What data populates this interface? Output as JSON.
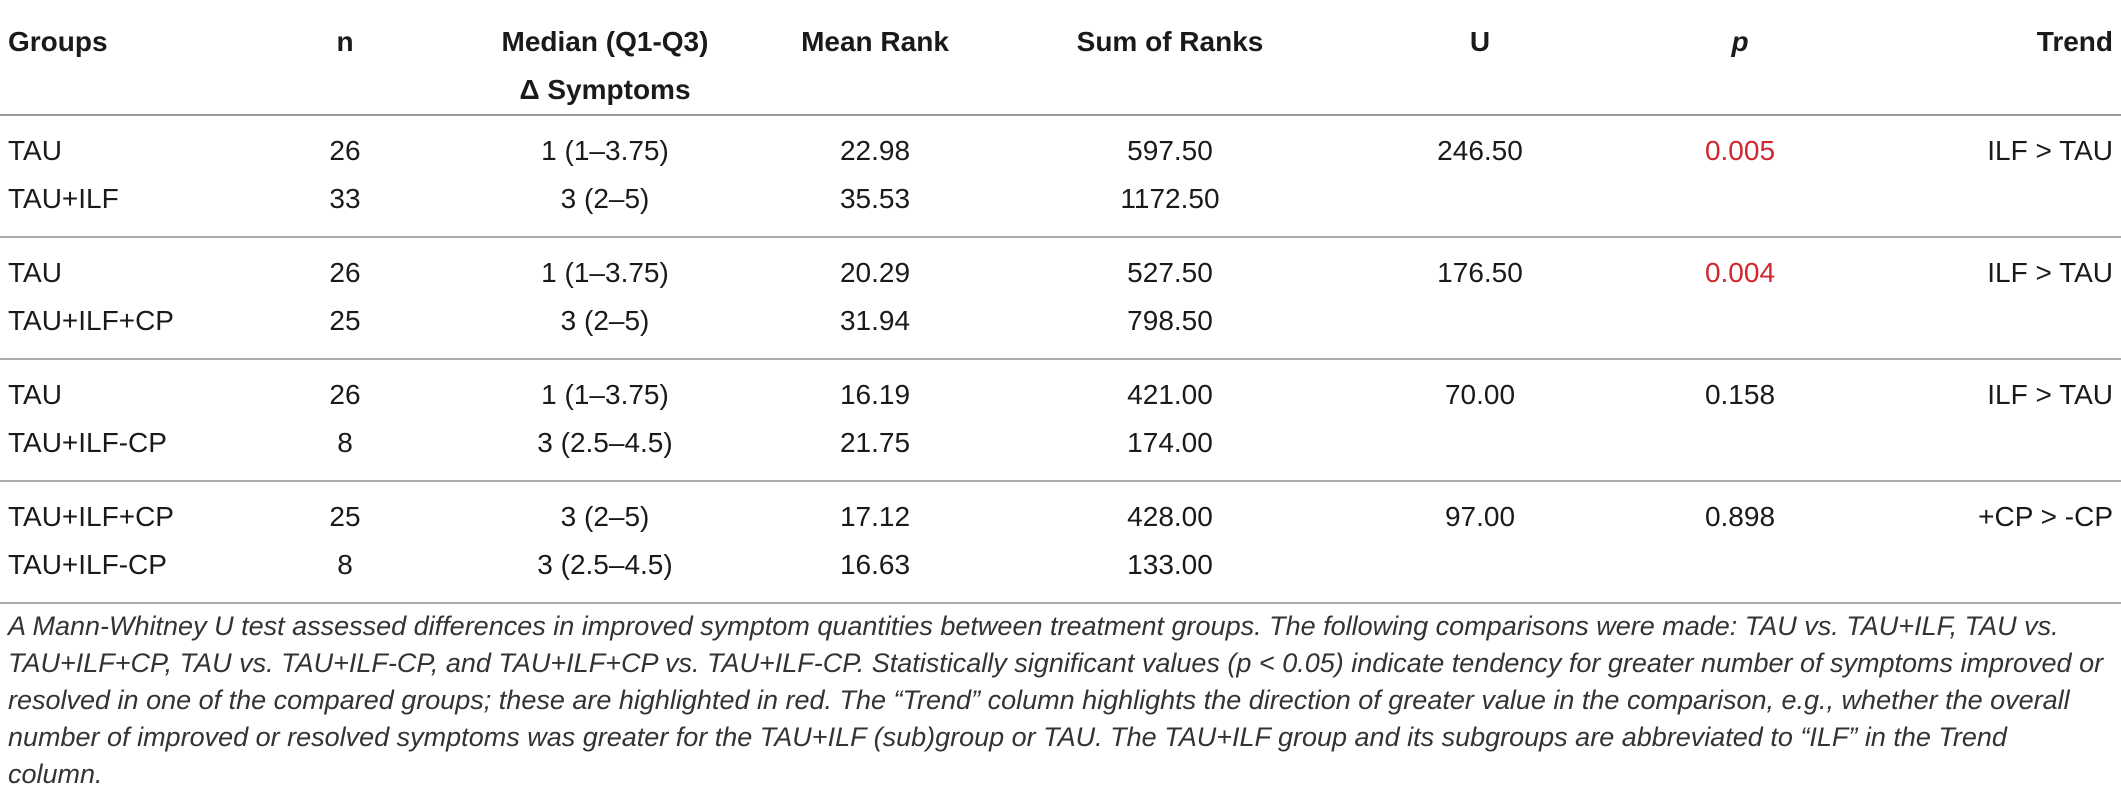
{
  "table": {
    "headers": {
      "groups": "Groups",
      "n": "n",
      "median_line1": "Median (Q1-Q3)",
      "median_line2": "Δ Symptoms",
      "mean_rank": "Mean Rank",
      "sum_of_ranks": "Sum of Ranks",
      "u": "U",
      "p": "p",
      "trend": "Trend"
    },
    "comparisons": [
      {
        "rows": [
          {
            "group": "TAU",
            "n": "26",
            "median": "1 (1–3.75)",
            "mean_rank": "22.98",
            "sum_ranks": "597.50",
            "u": "246.50",
            "p": "0.005",
            "trend": "ILF > TAU"
          },
          {
            "group": "TAU+ILF",
            "n": "33",
            "median": "3 (2–5)",
            "mean_rank": "35.53",
            "sum_ranks": "1172.50",
            "u": "",
            "p": "",
            "trend": ""
          }
        ],
        "significant": true
      },
      {
        "rows": [
          {
            "group": "TAU",
            "n": "26",
            "median": "1 (1–3.75)",
            "mean_rank": "20.29",
            "sum_ranks": "527.50",
            "u": "176.50",
            "p": "0.004",
            "trend": "ILF > TAU"
          },
          {
            "group": "TAU+ILF+CP",
            "n": "25",
            "median": "3 (2–5)",
            "mean_rank": "31.94",
            "sum_ranks": "798.50",
            "u": "",
            "p": "",
            "trend": ""
          }
        ],
        "significant": true
      },
      {
        "rows": [
          {
            "group": "TAU",
            "n": "26",
            "median": "1 (1–3.75)",
            "mean_rank": "16.19",
            "sum_ranks": "421.00",
            "u": "70.00",
            "p": "0.158",
            "trend": "ILF > TAU"
          },
          {
            "group": "TAU+ILF-CP",
            "n": "8",
            "median": "3 (2.5–4.5)",
            "mean_rank": "21.75",
            "sum_ranks": "174.00",
            "u": "",
            "p": "",
            "trend": ""
          }
        ],
        "significant": false
      },
      {
        "rows": [
          {
            "group": "TAU+ILF+CP",
            "n": "25",
            "median": "3 (2–5)",
            "mean_rank": "17.12",
            "sum_ranks": "428.00",
            "u": "97.00",
            "p": "0.898",
            "trend": "+CP > -CP"
          },
          {
            "group": "TAU+ILF-CP",
            "n": "8",
            "median": "3 (2.5–4.5)",
            "mean_rank": "16.63",
            "sum_ranks": "133.00",
            "u": "",
            "p": "",
            "trend": ""
          }
        ],
        "significant": false
      }
    ]
  },
  "footnote": "A Mann-Whitney U test assessed differences in improved symptom quantities between treatment groups. The following comparisons were made: TAU vs. TAU+ILF, TAU vs. TAU+ILF+CP, TAU vs. TAU+ILF-CP, and TAU+ILF+CP vs. TAU+ILF-CP. Statistically significant values (p < 0.05) indicate tendency for greater number of symptoms improved or resolved in one of the compared groups; these are highlighted in red. The “Trend” column highlights the direction of greater value in the comparison, e.g., whether the overall number of improved or resolved symptoms was greater for the TAU+ILF (sub)group or TAU. The TAU+ILF group and its subgroups are abbreviated to “ILF” in the Trend column.",
  "colors": {
    "significant_text": "#d0262d",
    "rule": "#aaaaaa"
  }
}
